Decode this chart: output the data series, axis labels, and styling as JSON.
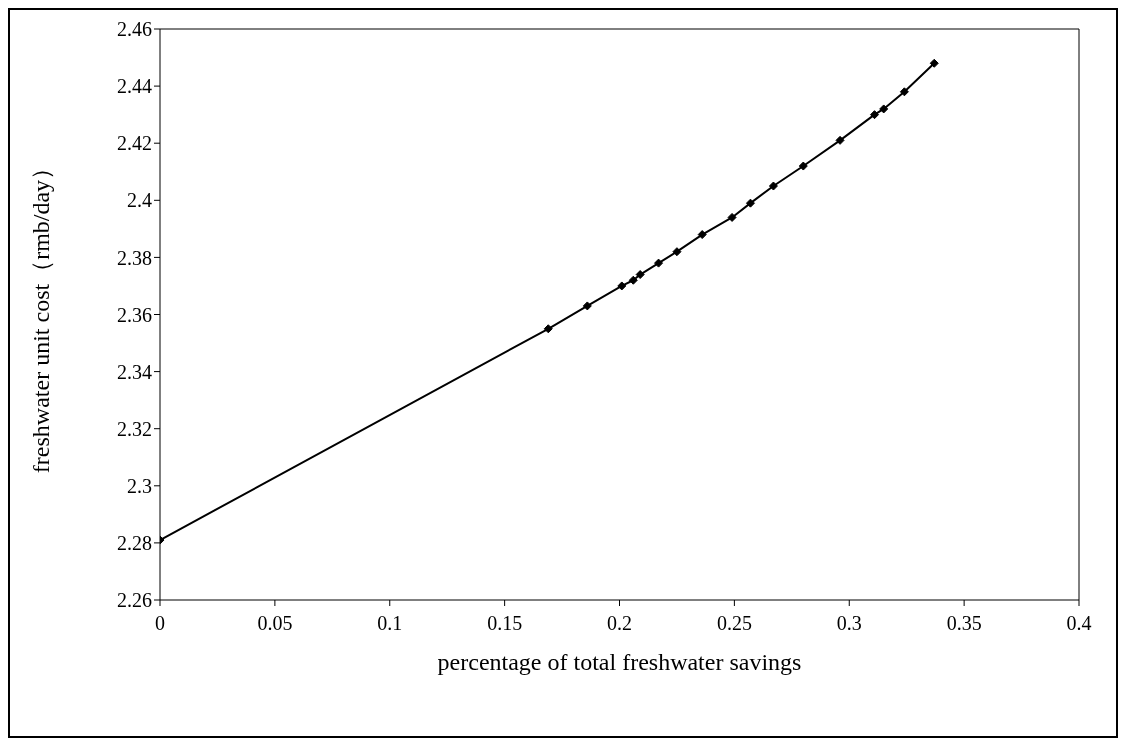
{
  "chart_data": {
    "type": "line",
    "xlabel": "percentage of total freshwater savings",
    "ylabel": "freshwater unit cost（rmb/day）",
    "x": [
      0,
      0.169,
      0.186,
      0.201,
      0.206,
      0.209,
      0.217,
      0.225,
      0.236,
      0.249,
      0.257,
      0.267,
      0.28,
      0.296,
      0.311,
      0.315,
      0.324,
      0.337
    ],
    "series": [
      {
        "color": "#000000",
        "values": [
          2.281,
          2.355,
          2.363,
          2.37,
          2.372,
          2.374,
          2.378,
          2.382,
          2.388,
          2.394,
          2.399,
          2.405,
          2.412,
          2.421,
          2.43,
          2.432,
          2.438,
          2.448
        ]
      }
    ],
    "xlim": [
      0,
      0.4
    ],
    "xticks": [
      0,
      0.05,
      0.1,
      0.15,
      0.2,
      0.25,
      0.3,
      0.35,
      0.4
    ],
    "ylim": [
      2.26,
      2.46
    ],
    "yticks": [
      2.26,
      2.28,
      2.3,
      2.32,
      2.34,
      2.36,
      2.38,
      2.4,
      2.42,
      2.44,
      2.46
    ],
    "grid": false,
    "legend": false,
    "marker": "diamond",
    "line_style": "solid"
  }
}
